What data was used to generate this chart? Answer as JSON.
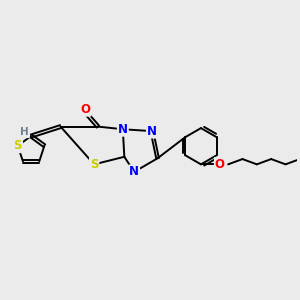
{
  "bg_color": "#ebebeb",
  "fig_size": [
    3.0,
    3.0
  ],
  "dpi": 100,
  "atom_colors": {
    "N": "#0000ff",
    "O": "#ff0000",
    "S": "#cccc00",
    "C": "#000000",
    "H": "#708090"
  },
  "bond_width": 1.4,
  "font_size_atom": 8.5,
  "font_size_H": 7.5
}
